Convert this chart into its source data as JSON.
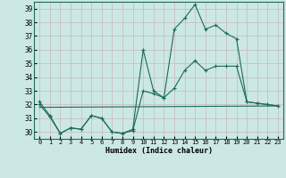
{
  "bg_color": "#cce8e4",
  "grid_color": "#c8b8b8",
  "line_color": "#1a6b5a",
  "xlabel": "Humidex (Indice chaleur)",
  "xlim": [
    -0.5,
    23.5
  ],
  "ylim": [
    29.5,
    39.5
  ],
  "yticks": [
    30,
    31,
    32,
    33,
    34,
    35,
    36,
    37,
    38,
    39
  ],
  "xticks": [
    0,
    1,
    2,
    3,
    4,
    5,
    6,
    7,
    8,
    9,
    10,
    11,
    12,
    13,
    14,
    15,
    16,
    17,
    18,
    19,
    20,
    21,
    22,
    23
  ],
  "series0_x": [
    0,
    1,
    2,
    3,
    4,
    5,
    6,
    7,
    8,
    9,
    10,
    11,
    12,
    13,
    14,
    15,
    16,
    17,
    18,
    19,
    20,
    21,
    22,
    23
  ],
  "series0_y": [
    32.2,
    31.2,
    29.9,
    30.3,
    30.2,
    31.2,
    31.0,
    30.0,
    29.9,
    30.2,
    36.0,
    33.0,
    32.5,
    37.5,
    38.3,
    39.3,
    37.5,
    37.8,
    37.2,
    36.8,
    32.2,
    32.1,
    32.0,
    31.9
  ],
  "series1_x": [
    0,
    1,
    2,
    3,
    4,
    5,
    6,
    7,
    8,
    9,
    10,
    11,
    12,
    13,
    14,
    15,
    16,
    17,
    18,
    19,
    20,
    21,
    22,
    23
  ],
  "series1_y": [
    32.0,
    31.1,
    29.9,
    30.3,
    30.2,
    31.2,
    31.0,
    30.0,
    29.9,
    30.1,
    33.0,
    32.8,
    32.5,
    33.2,
    34.5,
    35.2,
    34.5,
    34.8,
    34.8,
    34.8,
    32.2,
    32.1,
    32.0,
    31.9
  ],
  "series2_x": [
    0,
    23
  ],
  "series2_y": [
    31.8,
    31.9
  ]
}
